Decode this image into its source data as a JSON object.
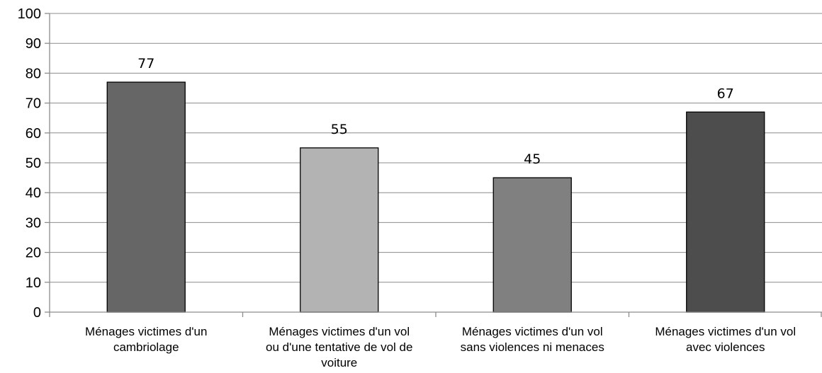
{
  "chart_data": {
    "type": "bar",
    "categories": [
      [
        "Ménages victimes d'un",
        "cambriolage"
      ],
      [
        "Ménages victimes d'un vol",
        "ou d'une tentative de vol de",
        "voiture"
      ],
      [
        "Ménages victimes d'un vol",
        "sans violences ni menaces"
      ],
      [
        "Ménages victimes d'un vol",
        "avec violences"
      ]
    ],
    "values": [
      77,
      55,
      45,
      67
    ],
    "data_labels": [
      "77",
      "55",
      "45",
      "67"
    ],
    "bar_colors": [
      "#666666",
      "#b3b3b3",
      "#808080",
      "#4d4d4d"
    ],
    "ylim": [
      0,
      100
    ],
    "y_ticks": [
      0,
      10,
      20,
      30,
      40,
      50,
      60,
      70,
      80,
      90,
      100
    ],
    "title": "",
    "xlabel": "",
    "ylabel": "",
    "grid": true,
    "legend": "none"
  }
}
